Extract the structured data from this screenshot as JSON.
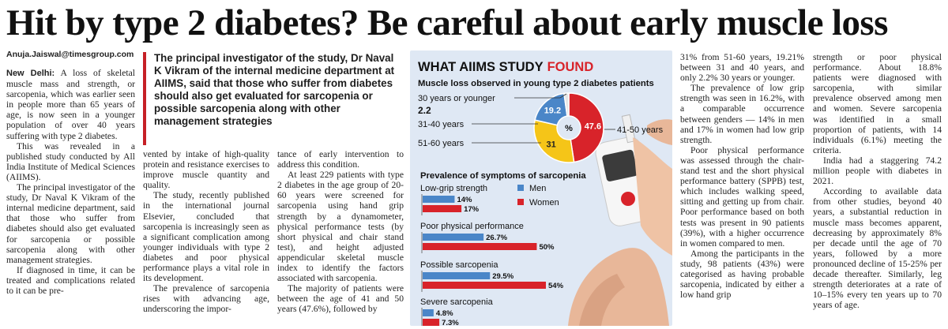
{
  "headline": "Hit by type 2 diabetes? Be careful about early muscle loss",
  "byline": "Anuja.Jaiswal@timesgroup.com",
  "pullquote": "The principal investigator of the study, Dr Naval K Vikram of the internal medicine department at AIIMS, said that those who suffer from diabetes should also get evaluated for sarcopenia or possible sarcopenia along with other management strategies",
  "article": {
    "dateline": "New Delhi:",
    "col1": [
      " A loss of skeletal muscle mass and strength, or sarcopenia, which was earlier seen in people more than 65 years of age, is now seen in a younger population of over 40 years suffering with type 2 diabetes.",
      "This was revealed in a published study conducted by All India Institute of Medical Sciences (AIIMS).",
      "The principal investigator of the study, Dr Naval K Vikram of the internal medicine department, said that those who suffer from diabetes should also get evaluated for sarcopenia or possible sarcopenia along with other management strategies.",
      "If diagnosed in time, it can be treated and complications related to it can be pre-"
    ],
    "col2": [
      "vented by intake of high-quality protein and resistance exercises to improve muscle quantity and quality.",
      "The study, recently published in the international journal Elsevier, concluded that sarcopenia is increasingly seen as a significant complication among younger individuals with type 2 diabetes and poor physical performance plays a vital role in its development.",
      "The prevalence of sarcopenia rises with advancing age, underscoring the impor-"
    ],
    "col3": [
      "tance of early intervention to address this condition.",
      "At least 229 patients with type 2 diabetes in the age group of 20-60 years were screened for sarcopenia using hand grip strength by a dynamometer, physical performance tests (by short physical and chair stand test), and height adjusted appendicular skeletal muscle index to identify the factors associated with sarcopenia.",
      "The majority of patients were between the age of 41 and 50 years (47.6%), followed by"
    ],
    "col4": [
      "31% from 51-60 years, 19.21% between 31 and 40 years, and only 2.2% 30 years or younger.",
      "The prevalence of low grip strength was seen in 16.2%, with a comparable occurrence between genders — 14% in men and 17% in women had low grip strength.",
      "Poor physical performance was assessed through the chair-stand test and the short physical performance battery (SPPB) test, which includes walking speed, sitting and getting up from chair. Poor performance based on both tests was present in 90 patients (39%), with a higher occurrence in women compared to men.",
      "Among the participants in the study, 98 patients (43%) were categorised as having probable sarcopenia, indicated by either a low hand grip"
    ],
    "col5": [
      "strength or poor physical performance. About 18.8% patients were diagnosed with sarcopenia, with similar prevalence observed among men and women. Severe sarcopenia was identified in a small proportion of patients, with 14 individuals (6.1%) meeting the criteria.",
      "India had a staggering 74.2 million people with diabetes in 2021.",
      "According to available data from other studies, beyond 40 years, a substantial reduction in muscle mass becomes apparent, decreasing by approximately 8% per decade until the age of 70 years, followed by a more pronounced decline of 15-25% per decade thereafter. Similarly, leg strength deteriorates at a rate of 10–15% every ten years up to 70 years of age."
    ]
  },
  "infographic": {
    "title_part1": "WHAT AIIMS STUDY",
    "title_part2": "FOUND",
    "pie_title": "Muscle loss observed in young type 2 diabetes patients",
    "pie_center": "%",
    "bar_title": "Prevalence of symptoms of sarcopenia",
    "legend_men": "Men",
    "legend_women": "Women",
    "colors": {
      "men": "#4a86c8",
      "women": "#d8232a",
      "yellow": "#f5c518",
      "blue": "#4a86c8",
      "red": "#d8232a",
      "title_accent": "#d8232a"
    }
  },
  "chart_data": [
    {
      "type": "pie",
      "title": "Muscle loss observed in young type 2 diabetes patients",
      "slices": [
        {
          "label": "41-50 years",
          "value": 47.6,
          "value_label": "47.6",
          "color": "#d8232a"
        },
        {
          "label": "51-60 years",
          "value": 31,
          "value_label": "31",
          "color": "#f5c518"
        },
        {
          "label": "31-40 years",
          "value": 19.2,
          "value_label": "19.2",
          "color": "#4a86c8"
        },
        {
          "label": "30 years or younger",
          "value": 2.2,
          "value_label": "2.2",
          "color": "#e6e6e6"
        }
      ]
    },
    {
      "type": "bar",
      "title": "Prevalence of symptoms of sarcopenia",
      "categories": [
        "Low-grip strength",
        "Poor physical performance",
        "Possible sarcopenia",
        "Severe sarcopenia"
      ],
      "series": [
        {
          "name": "Men",
          "values": [
            14,
            26.7,
            29.5,
            4.8
          ],
          "labels": [
            "14%",
            "26.7%",
            "29.5%",
            "4.8%"
          ]
        },
        {
          "name": "Women",
          "values": [
            17,
            50,
            54,
            7.3
          ],
          "labels": [
            "17%",
            "50%",
            "54%",
            "7.3%"
          ]
        }
      ]
    }
  ]
}
